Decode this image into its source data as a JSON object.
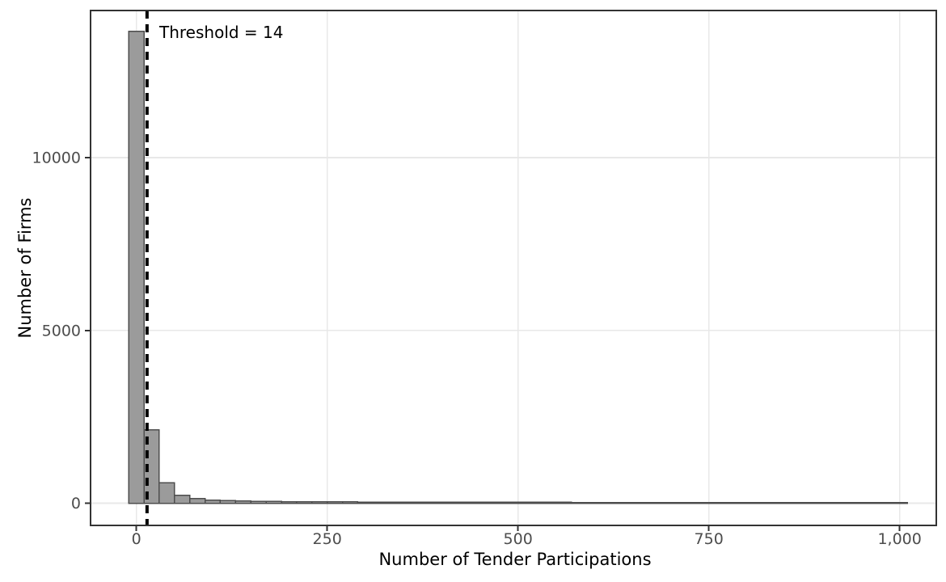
{
  "chart_data": {
    "type": "bar",
    "subtype": "histogram",
    "title": "",
    "xlabel": "Number of Tender Participations",
    "ylabel": "Number of Firms",
    "annotation": "Threshold = 14",
    "threshold_x": 14,
    "legend": "none",
    "grid": "major",
    "bin_width": 20,
    "bin_centers": [
      0,
      20,
      40,
      60,
      80,
      100,
      120,
      140,
      160,
      180,
      200,
      220,
      240,
      260,
      280,
      300,
      320,
      340,
      360,
      380,
      400,
      420,
      440,
      460,
      480,
      500,
      520,
      540,
      560,
      580,
      600,
      620,
      640,
      660,
      680,
      700,
      720,
      740,
      760,
      780,
      800,
      820,
      840,
      860,
      880,
      900,
      920,
      940,
      960,
      980,
      1000
    ],
    "values": [
      13650,
      2120,
      590,
      230,
      130,
      90,
      72,
      62,
      55,
      50,
      46,
      43,
      40,
      38,
      36,
      34,
      33,
      32,
      31,
      30,
      29,
      28,
      27,
      26,
      26,
      25,
      25,
      24,
      24,
      23,
      23,
      22,
      22,
      21,
      21,
      20,
      20,
      20,
      19,
      19,
      19,
      18,
      18,
      18,
      17,
      17,
      17,
      16,
      16,
      16,
      15
    ],
    "x_ticks": [
      {
        "value": 0,
        "label": "0"
      },
      {
        "value": 250,
        "label": "250"
      },
      {
        "value": 500,
        "label": "500"
      },
      {
        "value": 750,
        "label": "750"
      },
      {
        "value": 1000,
        "label": "1,000"
      }
    ],
    "y_ticks": [
      {
        "value": 0,
        "label": "0"
      },
      {
        "value": 5000,
        "label": "5000"
      },
      {
        "value": 10000,
        "label": "10000"
      }
    ],
    "xlim": [
      -60,
      1048
    ],
    "ylim": [
      -643,
      14257
    ],
    "colors": {
      "background": "#ffffff",
      "bar_fill": "#9b9b9b",
      "bar_stroke": "#4d4d4d",
      "grid": "#e8e8e8",
      "panel_border": "#333333",
      "tick_mark": "#333333",
      "axis_text": "#4d4d4d",
      "title_text": "#000000",
      "threshold_line": "#000000"
    }
  }
}
